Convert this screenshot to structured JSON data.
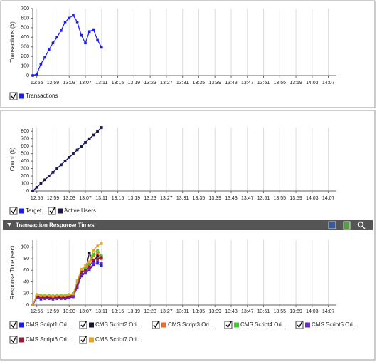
{
  "panel": {
    "title": "Transaction Response Times"
  },
  "chart_data": [
    {
      "type": "line",
      "ylabel": "Transactions (#)",
      "x": [
        "12:54",
        "12:55",
        "12:56",
        "12:57",
        "12:58",
        "12:59",
        "13:00",
        "13:01",
        "13:02",
        "13:03",
        "13:04",
        "13:05",
        "13:06",
        "13:07",
        "13:08",
        "13:09",
        "13:10",
        "13:11"
      ],
      "xlim": [
        "12:54",
        "14:09"
      ],
      "xticks": [
        "12:55",
        "12:59",
        "13:03",
        "13:07",
        "13:11",
        "13:15",
        "13:19",
        "13:23",
        "13:27",
        "13:31",
        "13:35",
        "13:39",
        "13:43",
        "13:47",
        "13:51",
        "13:55",
        "13:59",
        "14:03",
        "14:07"
      ],
      "ylim": [
        0,
        700
      ],
      "yticks": [
        0,
        100,
        200,
        300,
        400,
        500,
        600,
        700
      ],
      "grid": "x",
      "series": [
        {
          "name": "Transactions",
          "color": "#1a1aff",
          "values": [
            0,
            15,
            120,
            190,
            270,
            340,
            400,
            470,
            560,
            600,
            630,
            560,
            420,
            340,
            460,
            480,
            370,
            295
          ]
        }
      ]
    },
    {
      "type": "line",
      "ylabel": "Count (#)",
      "x": [
        "12:54",
        "12:55",
        "12:56",
        "12:57",
        "12:58",
        "12:59",
        "13:00",
        "13:01",
        "13:02",
        "13:03",
        "13:04",
        "13:05",
        "13:06",
        "13:07",
        "13:08",
        "13:09",
        "13:10",
        "13:11"
      ],
      "xlim": [
        "12:54",
        "14:09"
      ],
      "xticks": [
        "12:55",
        "12:59",
        "13:03",
        "13:07",
        "13:11",
        "13:15",
        "13:19",
        "13:23",
        "13:27",
        "13:31",
        "13:35",
        "13:39",
        "13:43",
        "13:47",
        "13:51",
        "13:55",
        "13:59",
        "14:03",
        "14:07"
      ],
      "ylim": [
        0,
        850
      ],
      "yticks": [
        0,
        100,
        200,
        300,
        400,
        500,
        600,
        700,
        800
      ],
      "grid": "x",
      "series": [
        {
          "name": "Target",
          "color": "#1a1aff",
          "values": [
            0,
            50,
            100,
            150,
            200,
            250,
            300,
            350,
            400,
            450,
            500,
            550,
            600,
            650,
            700,
            750,
            800,
            850
          ]
        },
        {
          "name": "Active Users",
          "color": "#1c1848",
          "values": [
            0,
            50,
            100,
            150,
            200,
            250,
            300,
            350,
            400,
            450,
            500,
            550,
            600,
            650,
            700,
            750,
            800,
            850
          ]
        }
      ]
    },
    {
      "type": "line",
      "ylabel": "Response Time (sec)",
      "x": [
        "12:54",
        "12:55",
        "12:56",
        "12:57",
        "12:58",
        "12:59",
        "13:00",
        "13:01",
        "13:02",
        "13:03",
        "13:04",
        "13:05",
        "13:06",
        "13:07",
        "13:08",
        "13:09",
        "13:10",
        "13:11"
      ],
      "xlim": [
        "12:54",
        "14:09"
      ],
      "xticks": [
        "12:55",
        "12:59",
        "13:03",
        "13:07",
        "13:11",
        "13:15",
        "13:19",
        "13:23",
        "13:27",
        "13:31",
        "13:35",
        "13:39",
        "13:43",
        "13:47",
        "13:51",
        "13:55",
        "13:59",
        "14:03",
        "14:07"
      ],
      "ylim": [
        0,
        112
      ],
      "yticks": [
        0,
        20,
        40,
        60,
        80,
        100
      ],
      "grid": "x",
      "series": [
        {
          "name": "CMS Script1 Ori...",
          "color": "#1a1aff",
          "values": [
            0,
            12,
            10,
            11,
            11,
            10,
            11,
            11,
            11,
            12,
            14,
            30,
            50,
            55,
            60,
            70,
            72,
            68
          ]
        },
        {
          "name": "CMS Script2 Ori...",
          "color": "#1c1030",
          "values": [
            0,
            14,
            13,
            13,
            13,
            12,
            13,
            13,
            13,
            14,
            16,
            32,
            55,
            60,
            90,
            75,
            85,
            80
          ]
        },
        {
          "name": "CMS Script3 Ori...",
          "color": "#f06a1a",
          "values": [
            0,
            16,
            15,
            15,
            15,
            14,
            15,
            15,
            15,
            16,
            18,
            38,
            58,
            62,
            70,
            85,
            90,
            80
          ]
        },
        {
          "name": "CMS Script4 Ori...",
          "color": "#3ccc2a",
          "values": [
            0,
            18,
            17,
            17,
            17,
            16,
            17,
            17,
            17,
            18,
            20,
            40,
            60,
            65,
            72,
            88,
            95,
            85
          ]
        },
        {
          "name": "CMS Script5 Ori...",
          "color": "#6a2ad0",
          "values": [
            0,
            13,
            12,
            12,
            12,
            11,
            12,
            12,
            12,
            13,
            15,
            31,
            52,
            57,
            62,
            72,
            76,
            72
          ]
        },
        {
          "name": "CMS Script6 Ori...",
          "color": "#a01830",
          "values": [
            0,
            15,
            14,
            14,
            14,
            13,
            14,
            14,
            14,
            15,
            17,
            34,
            56,
            60,
            66,
            78,
            80,
            82
          ]
        },
        {
          "name": "CMS Script7 Ori...",
          "color": "#f0a020",
          "values": [
            0,
            17,
            16,
            16,
            16,
            15,
            16,
            16,
            16,
            17,
            19,
            42,
            62,
            68,
            75,
            95,
            102,
            106
          ]
        }
      ]
    }
  ]
}
